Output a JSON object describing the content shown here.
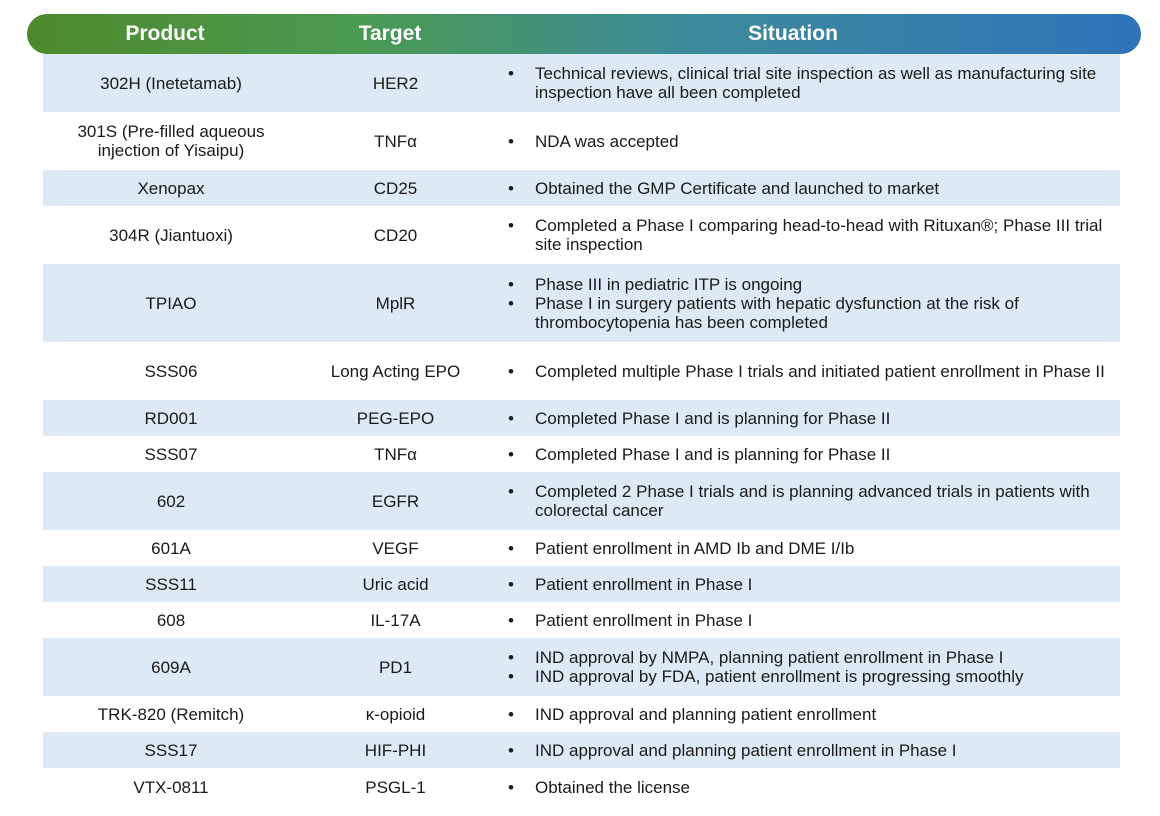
{
  "header": {
    "product": "Product",
    "target": "Target",
    "situation": "Situation"
  },
  "colors": {
    "header_gradient_start": "#4e8a2c",
    "header_gradient_end": "#2f73b9",
    "row_shade": "#dde9f5"
  },
  "rows": [
    {
      "product": "302H  (Inetetamab)",
      "target": "HER2",
      "situation": [
        "Technical reviews, clinical trial site inspection as well as manufacturing site inspection have all been completed"
      ]
    },
    {
      "product": "301S (Pre-filled aqueous injection of Yisaipu)",
      "target": "TNFα",
      "situation": [
        "NDA was accepted"
      ]
    },
    {
      "product": "Xenopax",
      "target": "CD25",
      "situation": [
        "Obtained the GMP Certificate and launched to market"
      ]
    },
    {
      "product": "304R (Jiantuoxi)",
      "target": "CD20",
      "situation": [
        "Completed a Phase I comparing head-to-head with Rituxan®; Phase III trial site inspection"
      ]
    },
    {
      "product": "TPIAO",
      "target": "MplR",
      "situation": [
        "Phase III in pediatric ITP is ongoing",
        "Phase I in surgery patients with hepatic dysfunction at the risk of thrombocytopenia has been completed"
      ]
    },
    {
      "product": "SSS06",
      "target": "Long Acting EPO",
      "situation": [
        "Completed multiple Phase I trials and initiated patient enrollment in Phase II"
      ]
    },
    {
      "product": "RD001",
      "target": "PEG-EPO",
      "situation": [
        "Completed Phase I and is planning for Phase II"
      ]
    },
    {
      "product": "SSS07",
      "target": "TNFα",
      "situation": [
        "Completed Phase I and is planning for Phase II"
      ]
    },
    {
      "product": "602",
      "target": "EGFR",
      "situation": [
        "Completed 2 Phase I trials and is planning advanced trials in patients with colorectal cancer"
      ]
    },
    {
      "product": "601A",
      "target": "VEGF",
      "situation": [
        "Patient enrollment in AMD Ib and DME I/Ib"
      ]
    },
    {
      "product": "SSS11",
      "target": "Uric acid",
      "situation": [
        "Patient enrollment in Phase I"
      ]
    },
    {
      "product": "608",
      "target": "IL-17A",
      "situation": [
        "Patient enrollment in Phase I"
      ]
    },
    {
      "product": "609A",
      "target": "PD1",
      "situation": [
        "IND approval by NMPA, planning patient enrollment in Phase I",
        "IND approval by FDA, patient enrollment is progressing smoothly"
      ]
    },
    {
      "product": "TRK-820  (Remitch)",
      "target": "κ-opioid",
      "situation": [
        "IND approval and planning patient enrollment"
      ]
    },
    {
      "product": "SSS17",
      "target": "HIF-PHI",
      "situation": [
        "IND approval and planning patient enrollment in Phase I"
      ]
    },
    {
      "product": "VTX-0811",
      "target": "PSGL-1",
      "situation": [
        "Obtained the license"
      ]
    }
  ]
}
